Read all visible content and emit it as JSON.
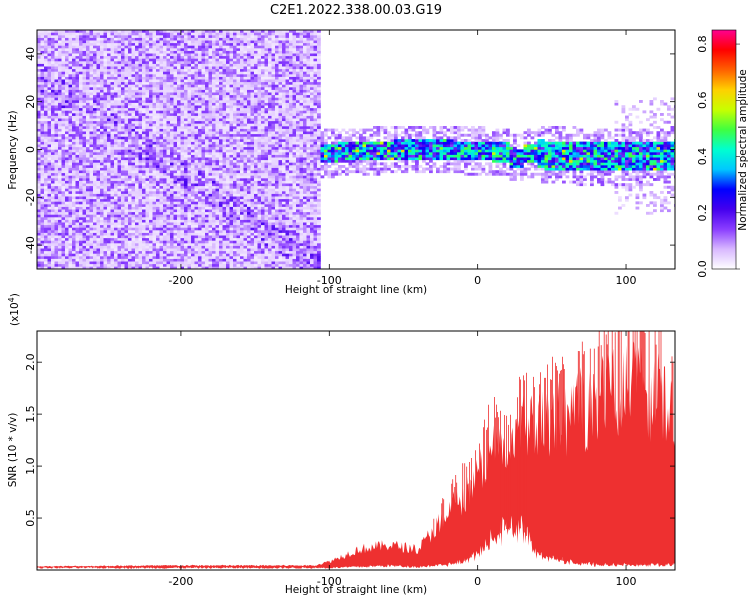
{
  "figure_title": "C2E1.2022.338.00.03.G19",
  "chart_data": [
    {
      "type": "heatmap",
      "title": "",
      "xlabel": "Height of straight line (km)",
      "ylabel": "Frequency (Hz)",
      "xlim": [
        -297,
        133
      ],
      "ylim": [
        -50,
        50
      ],
      "xticks": [
        -200,
        -100,
        0,
        100
      ],
      "yticks": [
        -40,
        -20,
        0,
        20,
        40
      ],
      "colorbar": {
        "label": "Normalized spectral amplitude",
        "range": [
          0.0,
          0.85
        ],
        "ticks": [
          0.0,
          0.2,
          0.4,
          0.6,
          0.8
        ],
        "colormap": [
          "#ffffff",
          "#d8b8ff",
          "#8a3dff",
          "#4400ee",
          "#0000ff",
          "#00c8ff",
          "#00ffd0",
          "#40ff40",
          "#c8ff00",
          "#ffd000",
          "#ff6000",
          "#ff0000",
          "#ff0090"
        ]
      },
      "regions": [
        {
          "x_range": [
            -297,
            -108
          ],
          "description_level": "noise",
          "freq_range": [
            -50,
            50
          ],
          "amplitude_range": [
            0.0,
            0.15
          ]
        },
        {
          "x_range": [
            -108,
            133
          ],
          "description_level": "signal",
          "center_freq": 0,
          "freq_halfwidth": 5,
          "amplitude_range": [
            0.1,
            0.6
          ]
        }
      ]
    },
    {
      "type": "area",
      "title": "",
      "xlabel": "Height of straight line (km)",
      "ylabel": "SNR (10 * v/v)",
      "y_multiplier_label": "(x10",
      "y_multiplier_exp": "4",
      "y_multiplier_close": ")",
      "xlim": [
        -297,
        133
      ],
      "ylim": [
        0,
        23000
      ],
      "xticks": [
        -200,
        -100,
        0,
        100
      ],
      "yticks": [
        0.5,
        1.0,
        1.5,
        2.0
      ],
      "ytick_labels": [
        "0.5",
        "1.0",
        "1.5",
        "2.0"
      ],
      "color": "#ee3030",
      "envelope": {
        "x": [
          -297,
          -200,
          -110,
          -100,
          -80,
          -60,
          -40,
          -20,
          -10,
          0,
          10,
          20,
          30,
          40,
          60,
          80,
          100,
          120,
          133
        ],
        "upper": [
          400,
          500,
          500,
          1000,
          2500,
          3000,
          2500,
          7000,
          9000,
          11000,
          15000,
          13000,
          17000,
          17500,
          19000,
          20500,
          22500,
          21500,
          18500
        ],
        "lower": [
          200,
          200,
          200,
          200,
          300,
          400,
          300,
          500,
          800,
          1500,
          3000,
          4000,
          4000,
          1500,
          800,
          500,
          500,
          500,
          500
        ]
      }
    }
  ]
}
